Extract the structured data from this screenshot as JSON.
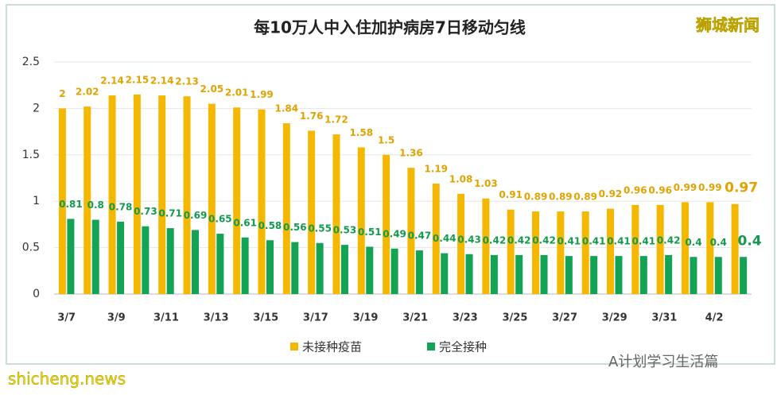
{
  "chart_data": {
    "type": "bar",
    "title": "每10万人中入住加护病房7日移动匀线",
    "categories": [
      "3/7",
      null,
      "3/9",
      null,
      "3/11",
      null,
      "3/13",
      null,
      "3/15",
      null,
      "3/17",
      null,
      "3/19",
      null,
      "3/21",
      null,
      "3/23",
      null,
      "3/25",
      null,
      "3/27",
      null,
      "3/29",
      null,
      "3/31",
      null,
      "4/2",
      null
    ],
    "series": [
      {
        "name": "未接种疫苗",
        "color": "#f5b800",
        "label_color": "#e0a300",
        "values": [
          2,
          2.02,
          2.14,
          2.15,
          2.14,
          2.13,
          2.05,
          2.01,
          1.99,
          1.84,
          1.76,
          1.72,
          1.58,
          1.5,
          1.36,
          1.19,
          1.08,
          1.03,
          0.91,
          0.89,
          0.89,
          0.89,
          0.92,
          0.96,
          0.96,
          0.99,
          0.99,
          0.97
        ]
      },
      {
        "name": "完全接种",
        "color": "#13a354",
        "label_color": "#139a4e",
        "values": [
          0.81,
          0.8,
          0.78,
          0.73,
          0.71,
          0.69,
          0.65,
          0.61,
          0.58,
          0.56,
          0.55,
          0.53,
          0.51,
          0.49,
          0.47,
          0.44,
          0.43,
          0.42,
          0.42,
          0.42,
          0.41,
          0.41,
          0.41,
          0.41,
          0.42,
          0.4,
          0.4,
          0.4
        ]
      }
    ],
    "ylim": [
      0,
      2.5
    ],
    "yticks": [
      0,
      0.5,
      1,
      1.5,
      2,
      2.5
    ],
    "grid": true,
    "legend": "bottom"
  },
  "watermarks": [
    "狮城新闻",
    "shicheng.news",
    "A计划学习生活篇"
  ]
}
